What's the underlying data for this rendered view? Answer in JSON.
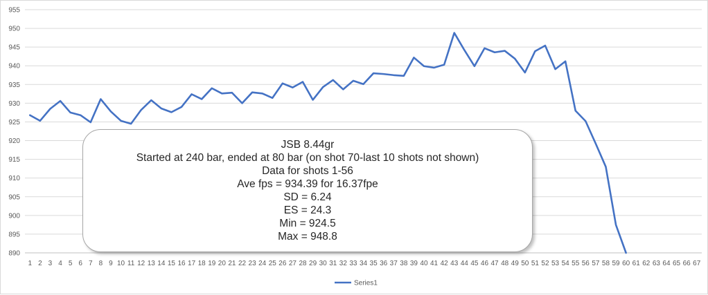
{
  "chart_data": {
    "type": "line",
    "title": "",
    "xlabel": "",
    "ylabel": "",
    "ylim": [
      890,
      955
    ],
    "y_ticks": [
      890,
      895,
      900,
      905,
      910,
      915,
      920,
      925,
      930,
      935,
      940,
      945,
      950,
      955
    ],
    "x_ticks": [
      1,
      2,
      3,
      4,
      5,
      6,
      7,
      8,
      9,
      10,
      11,
      12,
      13,
      14,
      15,
      16,
      17,
      18,
      19,
      20,
      21,
      22,
      23,
      24,
      25,
      26,
      27,
      28,
      29,
      30,
      31,
      32,
      33,
      34,
      35,
      36,
      37,
      38,
      39,
      40,
      41,
      42,
      43,
      44,
      45,
      46,
      47,
      48,
      49,
      50,
      51,
      52,
      53,
      54,
      55,
      56,
      57,
      58,
      59,
      60,
      61,
      62,
      63,
      64,
      65,
      66,
      67
    ],
    "grid": true,
    "legend_position": "bottom",
    "series": [
      {
        "name": "Series1",
        "color": "#4472c4",
        "x": [
          1,
          2,
          3,
          4,
          5,
          6,
          7,
          8,
          9,
          10,
          11,
          12,
          13,
          14,
          15,
          16,
          17,
          18,
          19,
          20,
          21,
          22,
          23,
          24,
          25,
          26,
          27,
          28,
          29,
          30,
          31,
          32,
          33,
          34,
          35,
          36,
          37,
          38,
          39,
          40,
          41,
          42,
          43,
          44,
          45,
          46,
          47,
          48,
          49,
          50,
          51,
          52,
          53,
          54,
          55,
          56,
          57,
          58,
          59,
          60
        ],
        "values": [
          926.8,
          925.3,
          928.5,
          930.6,
          927.5,
          926.8,
          924.9,
          931.1,
          927.8,
          925.3,
          924.5,
          928.2,
          930.8,
          928.6,
          927.6,
          929.0,
          932.4,
          931.1,
          934.0,
          932.6,
          932.8,
          930.0,
          932.9,
          932.6,
          931.4,
          935.3,
          934.2,
          935.7,
          930.9,
          934.3,
          936.2,
          933.7,
          936.0,
          935.1,
          938.0,
          937.8,
          937.5,
          937.3,
          942.2,
          939.9,
          939.5,
          940.3,
          948.8,
          944.2,
          939.9,
          944.7,
          943.6,
          944.0,
          941.9,
          938.2,
          943.9,
          945.4,
          939.1,
          941.2,
          928.0,
          925.2,
          919.2,
          913.0,
          897.5,
          890.0
        ]
      }
    ],
    "annotations": [
      "JSB 8.44gr",
      "Started at 240 bar, ended at 80 bar (on shot 70-last 10 shots not shown)",
      "Data for shots 1-56",
      "Ave fps = 934.39 for 16.37fpe",
      "SD = 6.24",
      "ES = 24.3",
      "Min = 924.5",
      "Max = 948.8"
    ]
  }
}
